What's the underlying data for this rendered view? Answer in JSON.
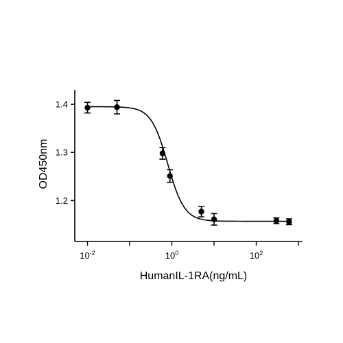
{
  "chart_data": {
    "type": "scatter",
    "title": "",
    "xlabel": "HumanIL-1RA(ng/mL)",
    "ylabel": "OD450nm",
    "x_scale": "log",
    "xlim": [
      0.005,
      1250
    ],
    "ylim": [
      1.115,
      1.43
    ],
    "x_ticks": [
      {
        "value": 0.01,
        "base": "10",
        "exp": "-2"
      },
      {
        "value": 1,
        "base": "10",
        "exp": "0"
      },
      {
        "value": 100,
        "base": "10",
        "exp": "2"
      }
    ],
    "y_ticks": [
      {
        "value": 1.2,
        "label": "1.2"
      },
      {
        "value": 1.3,
        "label": "1.3"
      },
      {
        "value": 1.4,
        "label": "1.4"
      }
    ],
    "grid": false,
    "legend": "none",
    "series": [
      {
        "points": [
          {
            "x": 0.01,
            "y": 1.393,
            "err": 0.011
          },
          {
            "x": 0.05,
            "y": 1.394,
            "err": 0.014
          },
          {
            "x": 0.6,
            "y": 1.298,
            "err": 0.012
          },
          {
            "x": 0.9,
            "y": 1.251,
            "err": 0.013
          },
          {
            "x": 5,
            "y": 1.177,
            "err": 0.011
          },
          {
            "x": 10,
            "y": 1.161,
            "err": 0.012
          },
          {
            "x": 300,
            "y": 1.158,
            "err": 0.006
          },
          {
            "x": 600,
            "y": 1.156,
            "err": 0.006
          }
        ],
        "fit": {
          "model": "4PL",
          "top": 1.395,
          "bottom": 1.157,
          "ec50": 0.8,
          "hill": 2.2
        }
      }
    ],
    "colors": {
      "marker": "#000000",
      "line": "#000000",
      "axis": "#000000"
    }
  }
}
